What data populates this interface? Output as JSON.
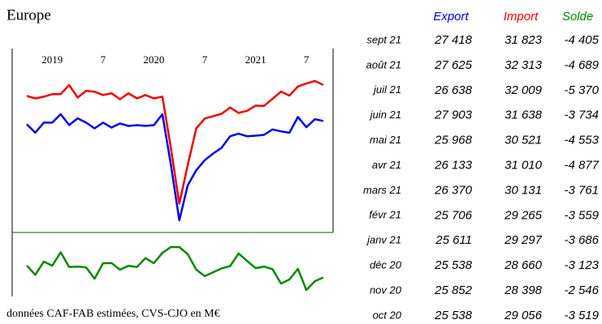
{
  "chart_data": {
    "type": "line",
    "title": "Europe",
    "footnote": "données CAF-FAB estimées, CVS-CJO en M€",
    "categories": [
      null,
      null,
      null,
      "2019",
      null,
      null,
      null,
      null,
      null,
      "7",
      null,
      null,
      null,
      null,
      null,
      "2020",
      null,
      null,
      null,
      null,
      null,
      "7",
      null,
      null,
      null,
      null,
      null,
      "2021",
      null,
      null,
      null,
      null,
      null,
      "7",
      null,
      null
    ],
    "series": [
      {
        "name": "Export",
        "color": "#0000ee",
        "panel": "top",
        "values": [
          27010,
          25980,
          27210,
          27210,
          28240,
          26910,
          27730,
          27210,
          26500,
          27210,
          26600,
          27110,
          26800,
          26900,
          26810,
          26900,
          28240,
          22090,
          15230,
          19530,
          21370,
          22600,
          23420,
          24140,
          25538,
          25852,
          25538,
          25611,
          25706,
          26370,
          26133,
          25968,
          27903,
          26638,
          27625,
          27418
        ]
      },
      {
        "name": "Import",
        "color": "#ee0000",
        "panel": "top",
        "values": [
          30490,
          30180,
          30390,
          30700,
          30700,
          31820,
          30290,
          31110,
          31000,
          30590,
          30800,
          30080,
          30800,
          30180,
          30590,
          30180,
          30400,
          24140,
          17270,
          22000,
          26500,
          27700,
          28000,
          28300,
          29056,
          28398,
          28660,
          29297,
          29265,
          30131,
          31010,
          30521,
          31638,
          32009,
          32313,
          31823
        ]
      },
      {
        "name": "Solde",
        "color": "#008800",
        "panel": "bottom",
        "values": [
          -3480,
          -4200,
          -3180,
          -3490,
          -2460,
          -3590,
          -3560,
          -3620,
          -4500,
          -3300,
          -3290,
          -3800,
          -3500,
          -3600,
          -2900,
          -3300,
          -2500,
          -2050,
          -2050,
          -2600,
          -3800,
          -4300,
          -4000,
          -3700,
          -3519,
          -2546,
          -3123,
          -3686,
          -3559,
          -3761,
          -4877,
          -4553,
          -3734,
          -5370,
          -4689,
          -4405
        ]
      }
    ]
  },
  "table": {
    "rows": [
      [
        "sept 21",
        "27 418",
        "31 823",
        "-4 405"
      ],
      [
        "août 21",
        "27 625",
        "32 313",
        "-4 689"
      ],
      [
        "juil 21",
        "26 638",
        "32 009",
        "-5 370"
      ],
      [
        "juin 21",
        "27 903",
        "31 638",
        "-3 734"
      ],
      [
        "mai 21",
        "25 968",
        "30 521",
        "-4 553"
      ],
      [
        "avr 21",
        "26 133",
        "31 010",
        "-4 877"
      ],
      [
        "mars 21",
        "26 370",
        "30 131",
        "-3 761"
      ],
      [
        "févr 21",
        "25 706",
        "29 265",
        "-3 559"
      ],
      [
        "janv 21",
        "25 611",
        "29 297",
        "-3 686"
      ],
      [
        "déc 20",
        "25 538",
        "28 660",
        "-3 123"
      ],
      [
        "nov 20",
        "25 852",
        "28 398",
        "-2 546"
      ],
      [
        "oct 20",
        "25 538",
        "29 056",
        "-3 519"
      ]
    ]
  }
}
